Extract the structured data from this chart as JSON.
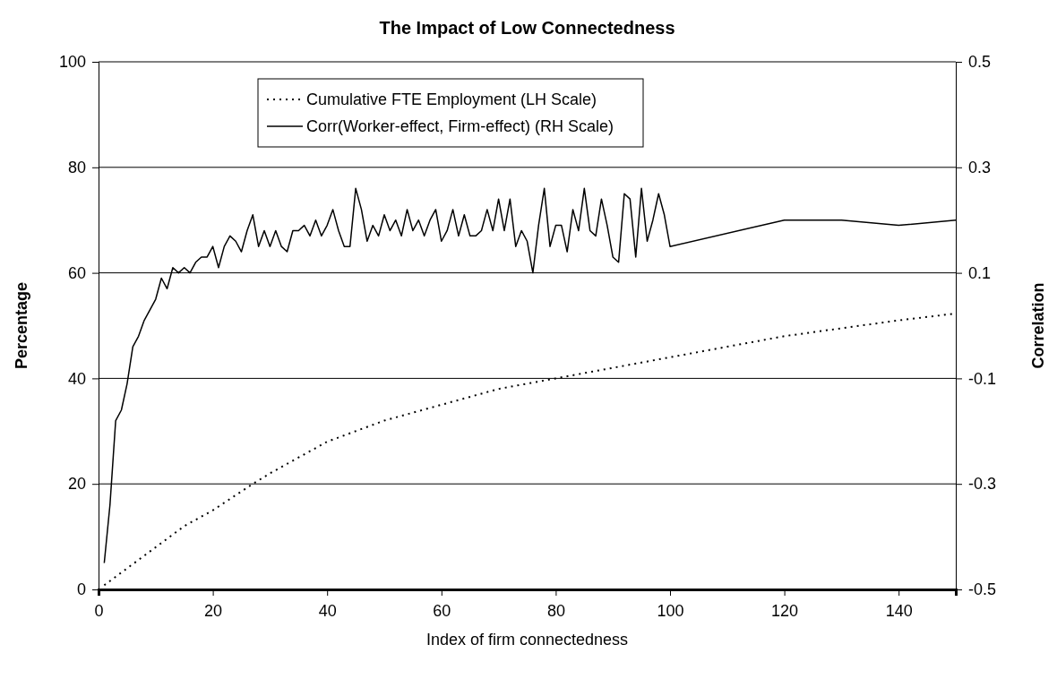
{
  "chart_data": {
    "type": "line",
    "title": "The Impact of Low Connectedness",
    "xlabel": "Index of firm connectedness",
    "ylabel": "Percentage",
    "y2label": "Correlation",
    "xlim": [
      0,
      150
    ],
    "xticks": [
      0,
      20,
      40,
      60,
      80,
      100,
      120,
      140
    ],
    "ylim": [
      0,
      100
    ],
    "yticks": [
      0,
      20,
      40,
      60,
      80,
      100
    ],
    "y2lim": [
      -0.5,
      0.5
    ],
    "y2ticks": [
      -0.5,
      -0.3,
      -0.1,
      0.1,
      0.3,
      0.5
    ],
    "grid": "y",
    "legend": "top",
    "marker": "none",
    "series": [
      {
        "name": "Cumulative FTE Employment (LH Scale)",
        "color": "#000000",
        "line_style": "dotted",
        "x": [
          1,
          5,
          10,
          15,
          20,
          27,
          30,
          40,
          50,
          60,
          70,
          80,
          90,
          100,
          110,
          120,
          130,
          140,
          150
        ],
        "values": [
          0.8,
          4,
          8,
          12,
          15,
          20,
          22,
          28,
          32,
          35,
          38,
          40,
          42,
          44,
          46,
          48,
          49.5,
          51,
          52.3
        ]
      },
      {
        "name": "Corr(Worker-effect, Firm-effect) (RH Scale)",
        "color": "#000000",
        "line_style": "solid",
        "axis": "y2",
        "x": [
          1,
          2,
          3,
          4,
          5,
          6,
          7,
          8,
          9,
          10,
          11,
          12,
          13,
          14,
          15,
          16,
          17,
          18,
          19,
          20,
          21,
          22,
          23,
          24,
          25,
          26,
          27,
          28,
          29,
          30,
          31,
          32,
          33,
          34,
          35,
          36,
          37,
          38,
          39,
          40,
          41,
          42,
          43,
          44,
          45,
          46,
          47,
          48,
          49,
          50,
          51,
          52,
          53,
          54,
          55,
          56,
          57,
          58,
          59,
          60,
          61,
          62,
          63,
          64,
          65,
          66,
          67,
          68,
          69,
          70,
          71,
          72,
          73,
          74,
          75,
          76,
          77,
          78,
          79,
          80,
          81,
          82,
          83,
          84,
          85,
          86,
          87,
          88,
          89,
          90,
          91,
          92,
          93,
          94,
          95,
          96,
          97,
          98,
          99,
          100,
          120,
          130,
          140,
          150
        ],
        "values": [
          -0.45,
          -0.34,
          -0.18,
          -0.16,
          -0.11,
          -0.04,
          -0.02,
          0.01,
          0.03,
          0.05,
          0.09,
          0.07,
          0.11,
          0.1,
          0.11,
          0.1,
          0.12,
          0.13,
          0.13,
          0.15,
          0.11,
          0.15,
          0.17,
          0.16,
          0.14,
          0.18,
          0.21,
          0.15,
          0.18,
          0.15,
          0.18,
          0.15,
          0.14,
          0.18,
          0.18,
          0.19,
          0.17,
          0.2,
          0.17,
          0.19,
          0.22,
          0.18,
          0.15,
          0.15,
          0.26,
          0.22,
          0.16,
          0.19,
          0.17,
          0.21,
          0.18,
          0.2,
          0.17,
          0.22,
          0.18,
          0.2,
          0.17,
          0.2,
          0.22,
          0.16,
          0.18,
          0.22,
          0.17,
          0.21,
          0.17,
          0.17,
          0.18,
          0.22,
          0.18,
          0.24,
          0.18,
          0.24,
          0.15,
          0.18,
          0.16,
          0.1,
          0.19,
          0.26,
          0.15,
          0.19,
          0.19,
          0.14,
          0.22,
          0.18,
          0.26,
          0.18,
          0.17,
          0.24,
          0.19,
          0.13,
          0.12,
          0.25,
          0.24,
          0.13,
          0.26,
          0.16,
          0.2,
          0.25,
          0.21,
          0.15,
          0.2,
          0.2,
          0.19,
          0.2
        ]
      }
    ]
  }
}
